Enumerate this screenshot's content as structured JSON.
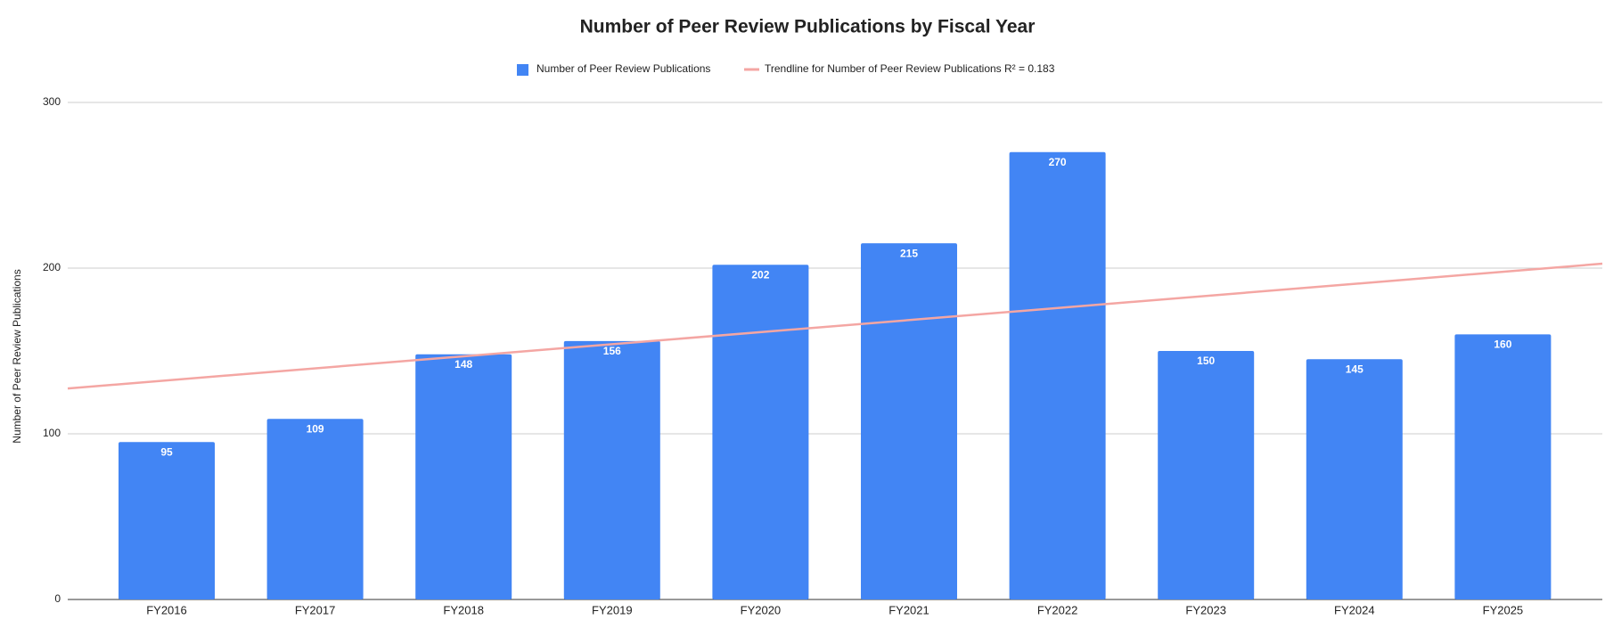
{
  "chart_data": {
    "type": "bar",
    "title": "Number of Peer Review Publications by Fiscal Year",
    "y_label": "Number of Peer Review Publications",
    "categories": [
      "FY2016",
      "FY2017",
      "FY2018",
      "FY2019",
      "FY2020",
      "FY2021",
      "FY2022",
      "FY2023",
      "FY2024",
      "FY2025"
    ],
    "series": [
      {
        "name": "Number of Peer Review Publications",
        "color": "#4285f4",
        "values": [
          95,
          109,
          148,
          156,
          202,
          215,
          270,
          150,
          145,
          160
        ]
      }
    ],
    "trendline": {
      "name": "Trendline for Number of Peer Review Publications R² = 0.183",
      "color": "#f4a6a3"
    },
    "ylim": [
      0,
      300
    ],
    "yticks": [
      0,
      100,
      200,
      300
    ],
    "grid": true
  }
}
